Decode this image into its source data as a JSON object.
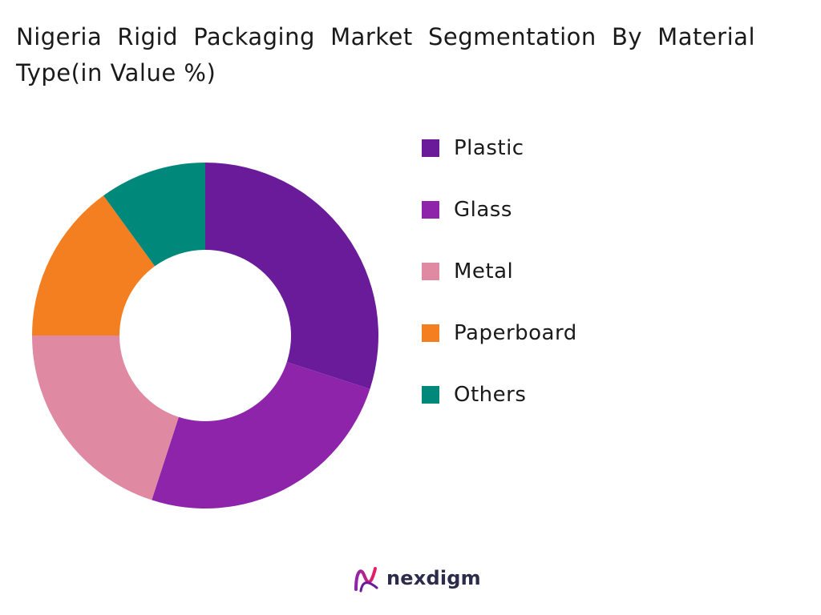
{
  "chart_data": {
    "type": "pie",
    "title": "Nigeria Rigid Packaging Market Segmentation By Material Type(in Value %)",
    "donut": true,
    "categories": [
      "Plastic",
      "Glass",
      "Metal",
      "Paperboard",
      "Others"
    ],
    "values": [
      30,
      25,
      20,
      15,
      10
    ],
    "colors": [
      "#6a1b9a",
      "#8e24aa",
      "#df8aa2",
      "#f47f20",
      "#00897b"
    ],
    "legend_position": "right"
  },
  "brand": {
    "name": "nexdigm",
    "logo_icon": "nexdigm-logo-icon"
  }
}
